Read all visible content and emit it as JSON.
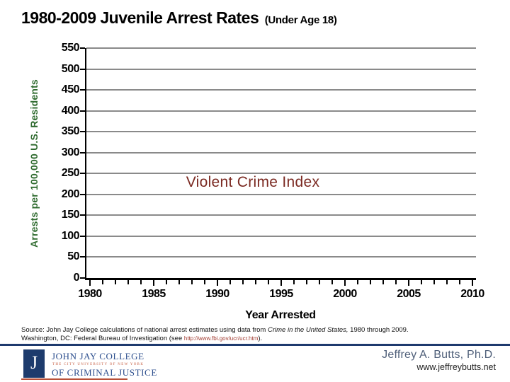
{
  "slide_title": {
    "main": "1980-2009 Juvenile Arrest Rates",
    "suffix": "(Under Age 18)"
  },
  "chart_data": {
    "type": "line",
    "title": "1980-2009 Juvenile Arrest Rates (Under Age 18)",
    "xlabel": "Year Arrested",
    "ylabel": "Arrests per 100,000 U.S. Residents",
    "annotation": "Violent Crime Index",
    "x_ticks": [
      1980,
      1985,
      1990,
      1995,
      2000,
      2005,
      2010
    ],
    "x_minor_tick_interval": 1,
    "y_ticks": [
      0,
      50,
      100,
      150,
      200,
      250,
      300,
      350,
      400,
      450,
      500,
      550
    ],
    "xlim": [
      1980,
      2010
    ],
    "ylim": [
      0,
      550
    ],
    "grid": true,
    "legend": false,
    "series": []
  },
  "source": {
    "line1_prefix": "Source: John Jay College calculations of national arrest estimates using data from ",
    "line1_italic": "Crime in the United States,",
    "line1_suffix": " 1980 through 2009.",
    "line2_prefix": "Washington, DC: Federal Bureau of Investigation (see ",
    "line2_url": "http://www.fbi.gov/ucr/ucr.htm",
    "line2_suffix": ")."
  },
  "footer": {
    "logo": {
      "initial": "J",
      "line1": "JOHN JAY COLLEGE",
      "line2": "THE CITY UNIVERSITY OF NEW YORK",
      "line3": "OF CRIMINAL JUSTICE"
    },
    "author": "Jeffrey A. Butts, Ph.D.",
    "website": "www.jeffreybutts.net"
  },
  "colors": {
    "background": "#ffffff",
    "title_text": "#000000",
    "y_axis_label_green": "#2f6b2f",
    "annotation_red": "#7b2a22",
    "gridline_gray": "#8a8a8a",
    "axis_black": "#000000",
    "separator_blue": "#1e3a6e",
    "logo_blue": "#1d3b6d",
    "logo_text_blue": "#2d4f8e",
    "logo_small_red": "#c4573a",
    "logo_underline_red": "#b85038",
    "source_url_red": "#a0392e",
    "author_gray_blue": "#50607a"
  }
}
